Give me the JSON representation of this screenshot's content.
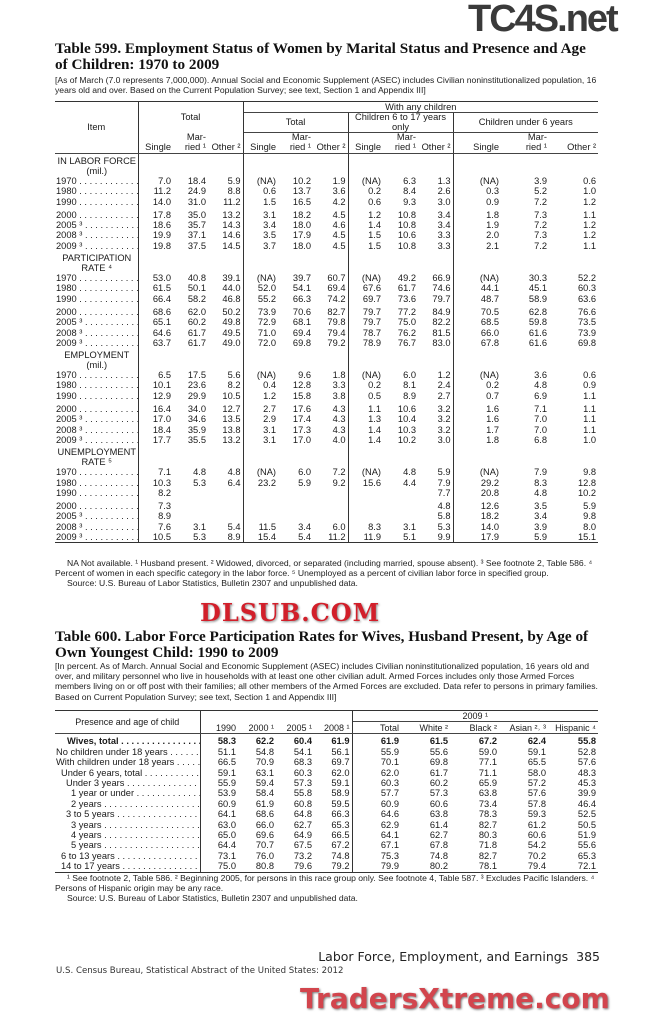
{
  "watermarks": {
    "top": "TC4S.net",
    "middle": "DLSUB.COM",
    "bottom": "TradersXtreme.com"
  },
  "table599": {
    "title": "Table 599. Employment Status of Women by Marital Status and Presence and Age of Children: 1970 to 2009",
    "headnote": "[As of March (7.0 represents 7,000,000). Annual Social and Economic Supplement (ASEC) includes Civilian noninstitutionalized population, 16 years old and over. Based on the Current Population Survey; see text, Section 1 and Appendix III]",
    "header": {
      "item": "Item",
      "total": "Total",
      "with_any_children": "With any children",
      "groups": [
        "Total",
        "Children 6 to 17 years only",
        "Children under 6 years"
      ],
      "subcols": [
        "Single",
        "Mar-\nried ¹",
        "Other ²"
      ]
    },
    "sections": [
      {
        "label": "IN LABOR FORCE\n(mil.)",
        "rows": [
          {
            "label": "1970",
            "values": [
              "7.0",
              "18.4",
              "5.9",
              "(NA)",
              "10.2",
              "1.9",
              "(NA)",
              "6.3",
              "1.3",
              "(NA)",
              "3.9",
              "0.6"
            ]
          },
          {
            "label": "1980",
            "values": [
              "11.2",
              "24.9",
              "8.8",
              "0.6",
              "13.7",
              "3.6",
              "0.2",
              "8.4",
              "2.6",
              "0.3",
              "5.2",
              "1.0"
            ]
          },
          {
            "label": "1990",
            "values": [
              "14.0",
              "31.0",
              "11.2",
              "1.5",
              "16.5",
              "4.2",
              "0.6",
              "9.3",
              "3.0",
              "0.9",
              "7.2",
              "1.2"
            ]
          },
          {
            "label": "2000",
            "values": [
              "17.8",
              "35.0",
              "13.2",
              "3.1",
              "18.2",
              "4.5",
              "1.2",
              "10.8",
              "3.4",
              "1.8",
              "7.3",
              "1.1"
            ]
          },
          {
            "label": "2005 ³",
            "values": [
              "18.6",
              "35.7",
              "14.3",
              "3.4",
              "18.0",
              "4.6",
              "1.4",
              "10.8",
              "3.4",
              "1.9",
              "7.2",
              "1.2"
            ]
          },
          {
            "label": "2008 ³",
            "values": [
              "19.9",
              "37.1",
              "14.6",
              "3.5",
              "17.9",
              "4.5",
              "1.5",
              "10.6",
              "3.3",
              "2.0",
              "7.3",
              "1.2"
            ]
          },
          {
            "label": "2009 ³",
            "values": [
              "19.8",
              "37.5",
              "14.5",
              "3.7",
              "18.0",
              "4.5",
              "1.5",
              "10.8",
              "3.3",
              "2.1",
              "7.2",
              "1.1"
            ]
          }
        ]
      },
      {
        "label": "PARTICIPATION\nRATE ⁴",
        "rows": [
          {
            "label": "1970",
            "values": [
              "53.0",
              "40.8",
              "39.1",
              "(NA)",
              "39.7",
              "60.7",
              "(NA)",
              "49.2",
              "66.9",
              "(NA)",
              "30.3",
              "52.2"
            ]
          },
          {
            "label": "1980",
            "values": [
              "61.5",
              "50.1",
              "44.0",
              "52.0",
              "54.1",
              "69.4",
              "67.6",
              "61.7",
              "74.6",
              "44.1",
              "45.1",
              "60.3"
            ]
          },
          {
            "label": "1990",
            "values": [
              "66.4",
              "58.2",
              "46.8",
              "55.2",
              "66.3",
              "74.2",
              "69.7",
              "73.6",
              "79.7",
              "48.7",
              "58.9",
              "63.6"
            ]
          },
          {
            "label": "2000",
            "values": [
              "68.6",
              "62.0",
              "50.2",
              "73.9",
              "70.6",
              "82.7",
              "79.7",
              "77.2",
              "84.9",
              "70.5",
              "62.8",
              "76.6"
            ]
          },
          {
            "label": "2005 ³",
            "values": [
              "65.1",
              "60.2",
              "49.8",
              "72.9",
              "68.1",
              "79.8",
              "79.7",
              "75.0",
              "82.2",
              "68.5",
              "59.8",
              "73.5"
            ]
          },
          {
            "label": "2008 ³",
            "values": [
              "64.6",
              "61.7",
              "49.5",
              "71.0",
              "69.4",
              "79.4",
              "78.7",
              "76.2",
              "81.5",
              "66.0",
              "61.6",
              "73.9"
            ]
          },
          {
            "label": "2009 ³",
            "values": [
              "63.7",
              "61.7",
              "49.0",
              "72.0",
              "69.8",
              "79.2",
              "78.9",
              "76.7",
              "83.0",
              "67.8",
              "61.6",
              "69.8"
            ]
          }
        ]
      },
      {
        "label": "EMPLOYMENT\n(mil.)",
        "rows": [
          {
            "label": "1970",
            "values": [
              "6.5",
              "17.5",
              "5.6",
              "(NA)",
              "9.6",
              "1.8",
              "(NA)",
              "6.0",
              "1.2",
              "(NA)",
              "3.6",
              "0.6"
            ]
          },
          {
            "label": "1980",
            "values": [
              "10.1",
              "23.6",
              "8.2",
              "0.4",
              "12.8",
              "3.3",
              "0.2",
              "8.1",
              "2.4",
              "0.2",
              "4.8",
              "0.9"
            ]
          },
          {
            "label": "1990",
            "values": [
              "12.9",
              "29.9",
              "10.5",
              "1.2",
              "15.8",
              "3.8",
              "0.5",
              "8.9",
              "2.7",
              "0.7",
              "6.9",
              "1.1"
            ]
          },
          {
            "label": "2000",
            "values": [
              "16.4",
              "34.0",
              "12.7",
              "2.7",
              "17.6",
              "4.3",
              "1.1",
              "10.6",
              "3.2",
              "1.6",
              "7.1",
              "1.1"
            ]
          },
          {
            "label": "2005 ³",
            "values": [
              "17.0",
              "34.6",
              "13.5",
              "2.9",
              "17.4",
              "4.3",
              "1.3",
              "10.4",
              "3.2",
              "1.6",
              "7.0",
              "1.1"
            ]
          },
          {
            "label": "2008 ³",
            "values": [
              "18.4",
              "35.9",
              "13.8",
              "3.1",
              "17.3",
              "4.3",
              "1.4",
              "10.3",
              "3.2",
              "1.7",
              "7.0",
              "1.1"
            ]
          },
          {
            "label": "2009 ³",
            "values": [
              "17.7",
              "35.5",
              "13.2",
              "3.1",
              "17.0",
              "4.0",
              "1.4",
              "10.2",
              "3.0",
              "1.8",
              "6.8",
              "1.0"
            ]
          }
        ]
      },
      {
        "label": "UNEMPLOYMENT\nRATE ⁵",
        "rows": [
          {
            "label": "1970",
            "values": [
              "7.1",
              "4.8",
              "4.8",
              "(NA)",
              "6.0",
              "7.2",
              "(NA)",
              "4.8",
              "5.9",
              "(NA)",
              "7.9",
              "9.8"
            ]
          },
          {
            "label": "1980",
            "values": [
              "10.3",
              "5.3",
              "6.4",
              "23.2",
              "5.9",
              "9.2",
              "15.6",
              "4.4",
              "7.9",
              "29.2",
              "8.3",
              "12.8"
            ]
          },
          {
            "label": "1990",
            "values": [
              "8.2",
              "",
              "",
              "",
              "",
              "",
              "",
              "",
              "7.7",
              "20.8",
              "4.8",
              "10.2"
            ]
          },
          {
            "label": "2000",
            "values": [
              "7.3",
              "",
              "",
              "",
              "",
              "",
              "",
              "",
              "4.8",
              "12.6",
              "3.5",
              "5.9"
            ]
          },
          {
            "label": "2005 ³",
            "values": [
              "8.9",
              "",
              "",
              "",
              "",
              "",
              "",
              "",
              "5.8",
              "18.2",
              "3.4",
              "9.8"
            ]
          },
          {
            "label": "2008 ³",
            "values": [
              "7.6",
              "3.1",
              "5.4",
              "11.5",
              "3.4",
              "6.0",
              "8.3",
              "3.1",
              "5.3",
              "14.0",
              "3.9",
              "8.0"
            ]
          },
          {
            "label": "2009 ³",
            "values": [
              "10.5",
              "5.3",
              "8.9",
              "15.4",
              "5.4",
              "11.2",
              "11.9",
              "5.1",
              "9.9",
              "17.9",
              "5.9",
              "15.1"
            ]
          }
        ]
      }
    ],
    "footnotes": "NA Not available. ¹ Husband present. ² Widowed, divorced, or separated (including married, spouse absent). ³ See footnote 2, Table 586. ⁴ Percent of women in each specific category in the labor force. ⁵ Unemployed as a percent of civilian labor force in specified group.",
    "source": "Source: U.S. Bureau of Labor Statistics, Bulletin 2307 and unpublished data."
  },
  "table600": {
    "title": "Table 600. Labor Force Participation Rates for Wives, Husband Present, by Age of Own Youngest Child: 1990 to 2009",
    "headnote": "[In percent. As of March. Annual Social and Economic Supplement (ASEC) includes Civilian noninstitutionalized population, 16 years old and over, and military personnel who live in households with at least one other civilian adult. Armed Forces includes only those Armed Forces members living on or off post with their families; all other members of the Armed Forces are excluded. Data refer to persons in primary families. Based on Current Population Survey; see text, Section 1 and Appendix III]",
    "header": {
      "stub": "Presence and age of child",
      "year_group": "2009 ¹",
      "columns": [
        "1990",
        "2000 ¹",
        "2005 ¹",
        "2008 ¹",
        "Total",
        "White ²",
        "Black ²",
        "Asian ²˒ ³",
        "Hispanic ⁴"
      ]
    },
    "rows": [
      {
        "label": "Wives, total",
        "bold": true,
        "values": [
          "58.3",
          "62.2",
          "60.4",
          "61.9",
          "61.9",
          "61.5",
          "67.2",
          "62.4",
          "55.8"
        ]
      },
      {
        "label": "No children under 18 years",
        "values": [
          "51.1",
          "54.8",
          "54.1",
          "56.1",
          "55.9",
          "55.6",
          "59.0",
          "59.1",
          "52.8"
        ]
      },
      {
        "label": "With children under 18 years",
        "values": [
          "66.5",
          "70.9",
          "68.3",
          "69.7",
          "70.1",
          "69.8",
          "77.1",
          "65.5",
          "57.6"
        ]
      },
      {
        "label": "Under 6 years, total",
        "indent": 1,
        "values": [
          "59.1",
          "63.1",
          "60.3",
          "62.0",
          "62.0",
          "61.7",
          "71.1",
          "58.0",
          "48.3"
        ]
      },
      {
        "label": "Under 3 years",
        "indent": 2,
        "values": [
          "55.9",
          "59.4",
          "57.3",
          "59.1",
          "60.3",
          "60.2",
          "65.9",
          "57.2",
          "45.3"
        ]
      },
      {
        "label": "1 year or under",
        "indent": 3,
        "values": [
          "53.9",
          "58.4",
          "55.8",
          "58.9",
          "57.7",
          "57.3",
          "63.8",
          "57.6",
          "39.9"
        ]
      },
      {
        "label": "2 years",
        "indent": 3,
        "values": [
          "60.9",
          "61.9",
          "60.8",
          "59.5",
          "60.9",
          "60.6",
          "73.4",
          "57.8",
          "46.4"
        ]
      },
      {
        "label": "3 to 5 years",
        "indent": 2,
        "values": [
          "64.1",
          "68.6",
          "64.8",
          "66.3",
          "64.6",
          "63.8",
          "78.3",
          "59.3",
          "52.5"
        ]
      },
      {
        "label": "3 years",
        "indent": 3,
        "values": [
          "63.0",
          "66.0",
          "62.7",
          "65.3",
          "62.9",
          "61.4",
          "82.7",
          "61.2",
          "50.5"
        ]
      },
      {
        "label": "4 years",
        "indent": 3,
        "values": [
          "65.0",
          "69.6",
          "64.9",
          "66.5",
          "64.1",
          "62.7",
          "80.3",
          "60.6",
          "51.9"
        ]
      },
      {
        "label": "5 years",
        "indent": 3,
        "values": [
          "64.4",
          "70.7",
          "67.5",
          "67.2",
          "67.1",
          "67.8",
          "71.8",
          "54.2",
          "55.6"
        ]
      },
      {
        "label": "6 to 13 years",
        "indent": 1,
        "values": [
          "73.1",
          "76.0",
          "73.2",
          "74.8",
          "75.3",
          "74.8",
          "82.7",
          "70.2",
          "65.3"
        ]
      },
      {
        "label": "14 to 17 years",
        "indent": 1,
        "values": [
          "75.0",
          "80.8",
          "79.6",
          "79.2",
          "79.9",
          "80.2",
          "78.1",
          "79.4",
          "72.1"
        ]
      }
    ],
    "footnotes": "¹ See footnote 2, Table 586. ² Beginning 2005, for persons in this race group only. See footnote 4, Table 587. ³ Excludes Pacific Islanders. ⁴ Persons of Hispanic origin may be any race.",
    "source": "Source: U.S. Bureau of Labor Statistics, Bulletin 2307 and unpublished data."
  },
  "page_footer": {
    "section": "Labor Force, Employment, and Earnings  385",
    "publication": "U.S. Census Bureau, Statistical Abstract of the United States: 2012"
  }
}
